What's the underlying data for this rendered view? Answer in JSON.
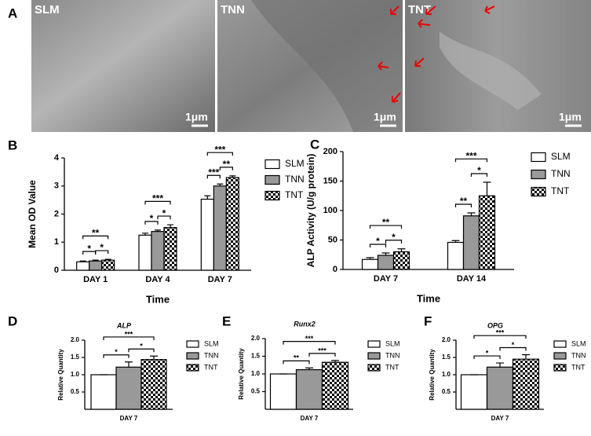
{
  "panel_a": {
    "label": "A",
    "images": [
      {
        "label": "SLM",
        "scale": "1μm"
      },
      {
        "label": "TNN",
        "scale": "1μm"
      },
      {
        "label": "TNT",
        "scale": "1μm"
      }
    ]
  },
  "chart_data": [
    {
      "type": "bar",
      "panel_label": "B",
      "x_label": "Time",
      "y_label": "Mean OD Value",
      "categories": [
        "DAY 1",
        "DAY 4",
        "DAY 7"
      ],
      "series": [
        {
          "name": "SLM",
          "color": "#ffffff",
          "values": [
            0.3,
            1.25,
            2.53
          ],
          "errors": [
            0.03,
            0.07,
            0.12
          ]
        },
        {
          "name": "TNN",
          "color": "#999999",
          "values": [
            0.33,
            1.38,
            3.0
          ],
          "errors": [
            0.03,
            0.05,
            0.07
          ]
        },
        {
          "name": "TNT",
          "color": "#000000",
          "pattern": "checkerboard",
          "values": [
            0.36,
            1.52,
            3.3
          ],
          "errors": [
            0.03,
            0.1,
            0.06
          ]
        }
      ],
      "ylim": [
        0,
        4
      ],
      "yticks": [
        0,
        1,
        2,
        3,
        4
      ],
      "annotations": [
        {
          "category": 0,
          "series": [
            0,
            1
          ],
          "text": "*"
        },
        {
          "category": 0,
          "series": [
            1,
            2
          ],
          "text": "*"
        },
        {
          "category": 0,
          "series": [
            0,
            2
          ],
          "text": "**"
        },
        {
          "category": 1,
          "series": [
            0,
            1
          ],
          "text": "*"
        },
        {
          "category": 1,
          "series": [
            1,
            2
          ],
          "text": "*"
        },
        {
          "category": 1,
          "series": [
            0,
            2
          ],
          "text": "***"
        },
        {
          "category": 2,
          "series": [
            0,
            1
          ],
          "text": "***"
        },
        {
          "category": 2,
          "series": [
            1,
            2
          ],
          "text": "**"
        },
        {
          "category": 2,
          "series": [
            0,
            2
          ],
          "text": "***"
        }
      ]
    },
    {
      "type": "bar",
      "panel_label": "C",
      "x_label": "Time",
      "y_label": "ALP Activity (U/g protein)",
      "categories": [
        "DAY 7",
        "DAY 14"
      ],
      "series": [
        {
          "name": "SLM",
          "color": "#ffffff",
          "values": [
            17,
            46
          ],
          "errors": [
            3,
            3
          ]
        },
        {
          "name": "TNN",
          "color": "#999999",
          "values": [
            24,
            91
          ],
          "errors": [
            4,
            5
          ]
        },
        {
          "name": "TNT",
          "color": "#000000",
          "pattern": "checkerboard",
          "values": [
            30,
            125
          ],
          "errors": [
            5,
            23
          ]
        }
      ],
      "ylim": [
        0,
        200
      ],
      "yticks": [
        0,
        50,
        100,
        150,
        200
      ],
      "annotations": [
        {
          "category": 0,
          "series": [
            0,
            1
          ],
          "text": "*"
        },
        {
          "category": 0,
          "series": [
            1,
            2
          ],
          "text": "*"
        },
        {
          "category": 0,
          "series": [
            0,
            2
          ],
          "text": "**"
        },
        {
          "category": 1,
          "series": [
            0,
            1
          ],
          "text": "**"
        },
        {
          "category": 1,
          "series": [
            1,
            2
          ],
          "text": "*"
        },
        {
          "category": 1,
          "series": [
            0,
            2
          ],
          "text": "***"
        }
      ]
    },
    {
      "type": "bar",
      "panel_label": "D",
      "title": "ALP",
      "y_label": "Relative Quantity",
      "categories": [
        "DAY 7"
      ],
      "series": [
        {
          "name": "SLM",
          "color": "#ffffff",
          "values": [
            1.0
          ],
          "errors": [
            0
          ]
        },
        {
          "name": "TNN",
          "color": "#999999",
          "values": [
            1.22
          ],
          "errors": [
            0.15
          ]
        },
        {
          "name": "TNT",
          "color": "#000000",
          "pattern": "checkerboard",
          "values": [
            1.44
          ],
          "errors": [
            0.1
          ]
        }
      ],
      "ylim": [
        0,
        2
      ],
      "yticks": [
        {
          "value": 0.5,
          "label": "0.5"
        },
        {
          "value": 1,
          "label": "1.0"
        },
        {
          "value": 1.5,
          "label": "1.5"
        },
        {
          "value": 2,
          "label": "2.0"
        }
      ],
      "annotations": [
        {
          "category": 0,
          "series": [
            0,
            1
          ],
          "text": "*"
        },
        {
          "category": 0,
          "series": [
            1,
            2
          ],
          "text": "*"
        },
        {
          "category": 0,
          "series": [
            0,
            2
          ],
          "text": "***"
        }
      ]
    },
    {
      "type": "bar",
      "panel_label": "E",
      "title": "Runx2",
      "y_label": "Relative Quantity",
      "categories": [
        "DAY 7"
      ],
      "series": [
        {
          "name": "SLM",
          "color": "#ffffff",
          "values": [
            1.0
          ],
          "errors": [
            0
          ]
        },
        {
          "name": "TNN",
          "color": "#999999",
          "values": [
            1.12
          ],
          "errors": [
            0.05
          ]
        },
        {
          "name": "TNT",
          "color": "#000000",
          "pattern": "checkerboard",
          "values": [
            1.33
          ],
          "errors": [
            0.05
          ]
        }
      ],
      "ylim": [
        0,
        2
      ],
      "yticks": [
        {
          "value": 0.5,
          "label": "0.5"
        },
        {
          "value": 1,
          "label": "1.0"
        },
        {
          "value": 1.5,
          "label": "1.5"
        },
        {
          "value": 2,
          "label": "2.0"
        }
      ],
      "annotations": [
        {
          "category": 0,
          "series": [
            0,
            1
          ],
          "text": "**"
        },
        {
          "category": 0,
          "series": [
            1,
            2
          ],
          "text": "***"
        },
        {
          "category": 0,
          "series": [
            0,
            2
          ],
          "text": "***"
        }
      ]
    },
    {
      "type": "bar",
      "panel_label": "F",
      "title": "OPG",
      "y_label": "Relative Quantity",
      "categories": [
        "DAY 7"
      ],
      "series": [
        {
          "name": "SLM",
          "color": "#ffffff",
          "values": [
            1.0
          ],
          "errors": [
            0
          ]
        },
        {
          "name": "TNN",
          "color": "#999999",
          "values": [
            1.22
          ],
          "errors": [
            0.12
          ]
        },
        {
          "name": "TNT",
          "color": "#000000",
          "pattern": "checkerboard",
          "values": [
            1.45
          ],
          "errors": [
            0.13
          ]
        }
      ],
      "ylim": [
        0,
        2
      ],
      "yticks": [
        {
          "value": 0.5,
          "label": "0.5"
        },
        {
          "value": 1,
          "label": "1.0"
        },
        {
          "value": 1.5,
          "label": "1.5"
        },
        {
          "value": 2,
          "label": "2.0"
        }
      ],
      "annotations": [
        {
          "category": 0,
          "series": [
            0,
            1
          ],
          "text": "*"
        },
        {
          "category": 0,
          "series": [
            1,
            2
          ],
          "text": "*"
        },
        {
          "category": 0,
          "series": [
            0,
            2
          ],
          "text": "***"
        }
      ]
    }
  ]
}
